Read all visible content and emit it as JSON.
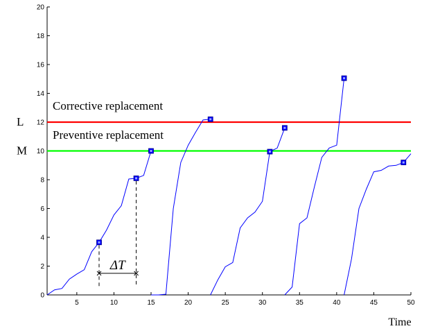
{
  "chart_data": {
    "type": "line",
    "xlabel": "Time",
    "ylabel": "",
    "xlim": [
      1,
      50
    ],
    "ylim": [
      0,
      20
    ],
    "x_ticks": [
      5,
      10,
      15,
      20,
      25,
      30,
      35,
      40,
      45,
      50
    ],
    "y_ticks": [
      0,
      2,
      4,
      6,
      8,
      10,
      12,
      14,
      16,
      18,
      20
    ],
    "grid": false,
    "thresholds": [
      {
        "label": "Corrective replacement",
        "level_label": "L",
        "value": 12,
        "color": "#ff0000"
      },
      {
        "label": "Preventive replacement",
        "level_label": "M",
        "value": 10,
        "color": "#00ff00"
      }
    ],
    "line_color": "#0000ff",
    "series": [
      {
        "x": [
          1,
          2,
          3,
          4,
          5,
          6,
          7,
          8,
          9,
          10,
          11,
          12,
          13,
          14,
          15
        ],
        "y": [
          0,
          0.35,
          0.45,
          1.1,
          1.45,
          1.75,
          3.0,
          3.65,
          4.5,
          5.55,
          6.2,
          8.05,
          8.1,
          8.3,
          10.0
        ]
      },
      {
        "x": [
          15,
          16,
          17,
          18,
          19,
          20,
          21,
          22,
          23
        ],
        "y": [
          0,
          0,
          0.05,
          6.0,
          9.2,
          10.4,
          11.3,
          12.15,
          12.2
        ]
      },
      {
        "x": [
          23,
          24,
          25,
          26,
          27,
          28,
          29,
          30,
          31,
          32,
          33
        ],
        "y": [
          0,
          1.05,
          1.95,
          2.25,
          4.65,
          5.35,
          5.75,
          6.5,
          9.95,
          10.2,
          11.6
        ]
      },
      {
        "x": [
          33,
          34,
          35,
          36,
          37,
          38,
          39,
          40,
          41
        ],
        "y": [
          0,
          0.55,
          4.95,
          5.35,
          7.5,
          9.55,
          10.2,
          10.4,
          15.05
        ]
      },
      {
        "x": [
          41,
          42,
          43,
          44,
          45,
          46,
          47,
          48,
          49,
          50
        ],
        "y": [
          0,
          2.5,
          6.0,
          7.35,
          8.55,
          8.65,
          8.95,
          9.0,
          9.2,
          9.8
        ]
      }
    ],
    "markers": [
      {
        "x": 8,
        "y": 3.65
      },
      {
        "x": 13,
        "y": 8.1
      },
      {
        "x": 15,
        "y": 10.0
      },
      {
        "x": 23,
        "y": 12.2
      },
      {
        "x": 31,
        "y": 9.95
      },
      {
        "x": 33,
        "y": 11.6
      },
      {
        "x": 41,
        "y": 15.05
      },
      {
        "x": 49,
        "y": 9.2
      }
    ],
    "interval_annotation": {
      "label": "ΔT",
      "x_start": 8,
      "x_end": 13,
      "y": 1.5
    }
  }
}
